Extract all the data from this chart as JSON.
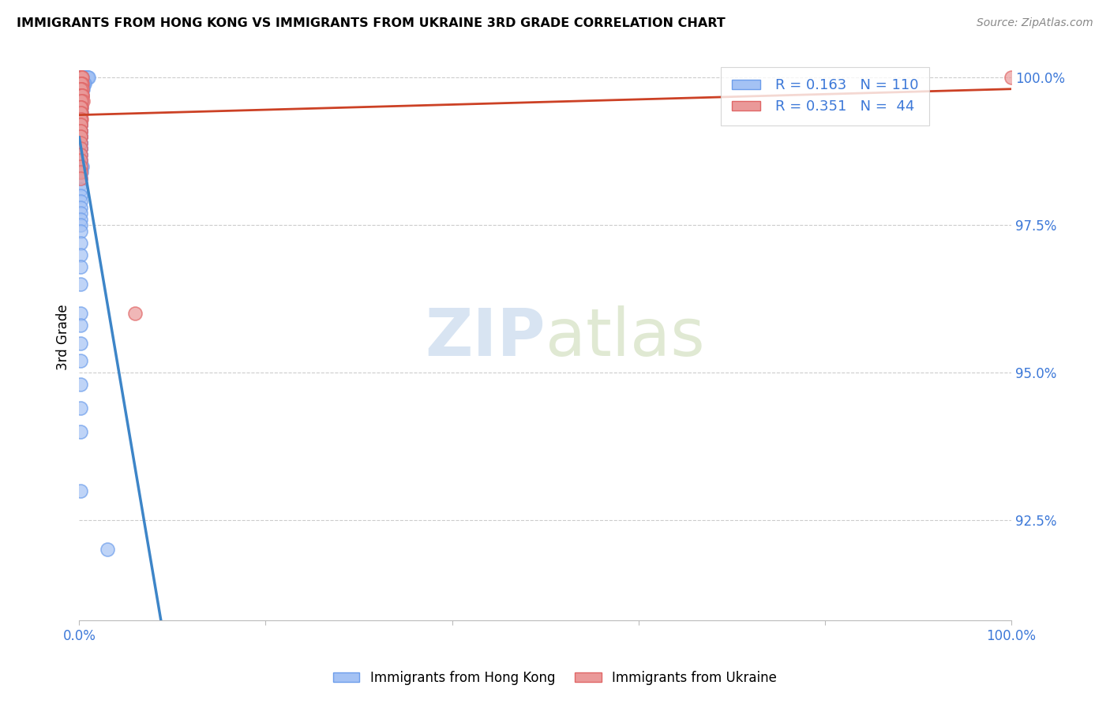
{
  "title": "IMMIGRANTS FROM HONG KONG VS IMMIGRANTS FROM UKRAINE 3RD GRADE CORRELATION CHART",
  "source": "Source: ZipAtlas.com",
  "ylabel": "3rd Grade",
  "right_ytick_values": [
    1.0,
    0.975,
    0.95,
    0.925
  ],
  "right_ytick_labels": [
    "100.0%",
    "97.5%",
    "95.0%",
    "92.5%"
  ],
  "legend_blue_r": "R = 0.163",
  "legend_blue_n": "N = 110",
  "legend_pink_r": "R = 0.351",
  "legend_pink_n": "N =  44",
  "blue_color": "#a4c2f4",
  "blue_edge_color": "#6d9eeb",
  "pink_color": "#ea9999",
  "pink_edge_color": "#e06666",
  "blue_line_color": "#3d85c8",
  "pink_line_color": "#cc4125",
  "watermark_zip": "ZIP",
  "watermark_atlas": "atlas",
  "xlim": [
    0.0,
    1.0
  ],
  "ylim": [
    0.908,
    1.004
  ],
  "blue_scatter_x": [
    0.001,
    0.002,
    0.003,
    0.004,
    0.005,
    0.006,
    0.007,
    0.008,
    0.009,
    0.01,
    0.002,
    0.003,
    0.004,
    0.005,
    0.006,
    0.001,
    0.002,
    0.003,
    0.004,
    0.001,
    0.002,
    0.003,
    0.004,
    0.001,
    0.002,
    0.003,
    0.001,
    0.002,
    0.001,
    0.002,
    0.003,
    0.001,
    0.002,
    0.001,
    0.002,
    0.001,
    0.002,
    0.001,
    0.002,
    0.001,
    0.001,
    0.001,
    0.001,
    0.002,
    0.001,
    0.001,
    0.001,
    0.001,
    0.001,
    0.001,
    0.002,
    0.001,
    0.001,
    0.001,
    0.001,
    0.001,
    0.001,
    0.001,
    0.001,
    0.001,
    0.001,
    0.001,
    0.001,
    0.001,
    0.001,
    0.001,
    0.001,
    0.001,
    0.001,
    0.001,
    0.001,
    0.001,
    0.001,
    0.001,
    0.001,
    0.001,
    0.001,
    0.001,
    0.001,
    0.001,
    0.001,
    0.001,
    0.001,
    0.002,
    0.003,
    0.001,
    0.002,
    0.001,
    0.001,
    0.001,
    0.001,
    0.001,
    0.001,
    0.001,
    0.001,
    0.001,
    0.001,
    0.001,
    0.001,
    0.001,
    0.001,
    0.001,
    0.001,
    0.001,
    0.001,
    0.001,
    0.001,
    0.001,
    0.001,
    0.03
  ],
  "blue_scatter_y": [
    1.0,
    1.0,
    1.0,
    1.0,
    1.0,
    1.0,
    1.0,
    1.0,
    1.0,
    1.0,
    1.0,
    1.0,
    0.999,
    0.999,
    0.999,
    0.999,
    0.999,
    0.999,
    0.999,
    0.998,
    0.998,
    0.998,
    0.998,
    0.998,
    0.998,
    0.998,
    0.997,
    0.997,
    0.997,
    0.997,
    0.997,
    0.997,
    0.997,
    0.997,
    0.997,
    0.997,
    0.996,
    0.996,
    0.996,
    0.996,
    0.996,
    0.995,
    0.995,
    0.995,
    0.995,
    0.995,
    0.995,
    0.995,
    0.994,
    0.994,
    0.994,
    0.994,
    0.994,
    0.994,
    0.993,
    0.993,
    0.993,
    0.993,
    0.993,
    0.993,
    0.992,
    0.992,
    0.992,
    0.992,
    0.991,
    0.991,
    0.991,
    0.991,
    0.99,
    0.99,
    0.99,
    0.99,
    0.989,
    0.989,
    0.989,
    0.988,
    0.988,
    0.988,
    0.987,
    0.987,
    0.986,
    0.986,
    0.985,
    0.985,
    0.985,
    0.984,
    0.984,
    0.983,
    0.982,
    0.981,
    0.98,
    0.979,
    0.978,
    0.977,
    0.976,
    0.975,
    0.974,
    0.972,
    0.97,
    0.968,
    0.965,
    0.96,
    0.958,
    0.955,
    0.952,
    0.948,
    0.944,
    0.94,
    0.93,
    0.92
  ],
  "pink_scatter_x": [
    0.001,
    0.002,
    0.001,
    0.002,
    0.003,
    0.001,
    0.002,
    0.003,
    0.001,
    0.002,
    0.001,
    0.002,
    0.003,
    0.001,
    0.002,
    0.003,
    0.001,
    0.002,
    0.003,
    0.004,
    0.001,
    0.002,
    0.001,
    0.002,
    0.001,
    0.002,
    0.001,
    0.002,
    0.001,
    0.001,
    0.001,
    0.001,
    0.001,
    0.001,
    0.001,
    0.001,
    0.001,
    0.001,
    0.001,
    0.001,
    0.001,
    0.001,
    0.06,
    1.0
  ],
  "pink_scatter_y": [
    1.0,
    1.0,
    1.0,
    1.0,
    1.0,
    0.999,
    0.999,
    0.999,
    0.999,
    0.999,
    0.998,
    0.998,
    0.998,
    0.998,
    0.997,
    0.997,
    0.997,
    0.997,
    0.997,
    0.996,
    0.996,
    0.996,
    0.995,
    0.995,
    0.995,
    0.994,
    0.994,
    0.993,
    0.993,
    0.992,
    0.992,
    0.991,
    0.991,
    0.99,
    0.99,
    0.989,
    0.988,
    0.987,
    0.986,
    0.985,
    0.984,
    0.983,
    0.96,
    1.0
  ]
}
